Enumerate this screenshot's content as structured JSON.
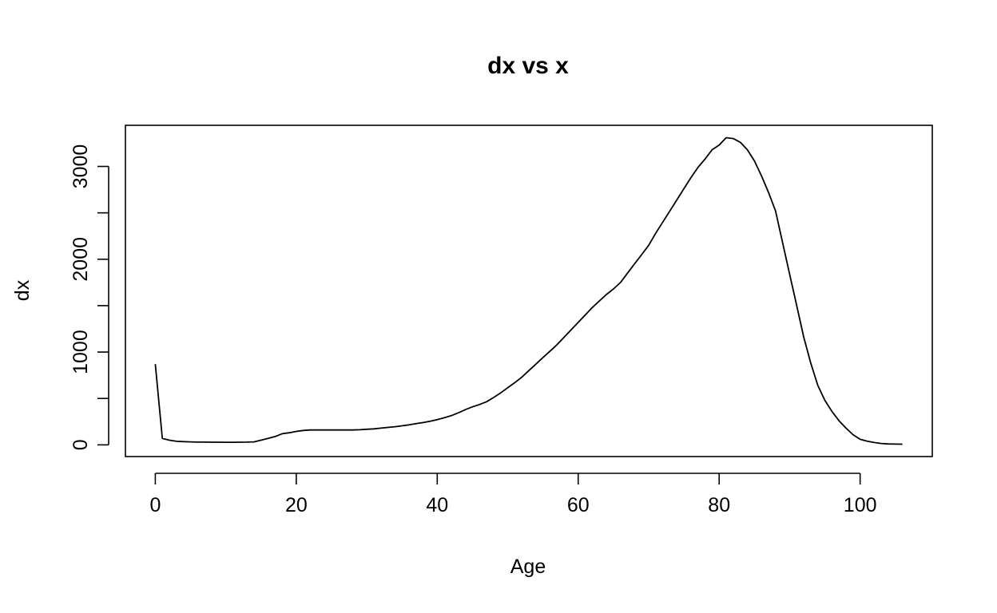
{
  "chart_data": {
    "type": "line",
    "title": "dx vs x",
    "xlabel": "Age",
    "ylabel": "dx",
    "xlim": [
      -4.24,
      110.24
    ],
    "ylim": [
      -126,
      3443
    ],
    "x_ticks": [
      0,
      20,
      40,
      60,
      80,
      100
    ],
    "y_ticks": [
      0,
      1000,
      2000,
      3000
    ],
    "y_minor_ticks": [
      500,
      1500,
      2500
    ],
    "grid": false,
    "legend": "none",
    "line_color": "#000000",
    "series": [
      {
        "x": [
          0,
          1,
          2,
          3,
          4,
          5,
          6,
          7,
          8,
          9,
          10,
          11,
          12,
          13,
          14,
          15,
          16,
          17,
          18,
          19,
          20,
          21,
          22,
          23,
          24,
          25,
          26,
          27,
          28,
          29,
          30,
          31,
          32,
          33,
          34,
          35,
          36,
          37,
          38,
          39,
          40,
          41,
          42,
          43,
          44,
          45,
          46,
          47,
          48,
          49,
          50,
          51,
          52,
          53,
          54,
          55,
          56,
          57,
          58,
          59,
          60,
          61,
          62,
          63,
          64,
          65,
          66,
          67,
          68,
          69,
          70,
          71,
          72,
          73,
          74,
          75,
          76,
          77,
          78,
          79,
          80,
          81,
          82,
          83,
          84,
          85,
          86,
          87,
          88,
          89,
          90,
          91,
          92,
          93,
          94,
          95,
          96,
          97,
          98,
          99,
          100,
          101,
          102,
          103,
          104,
          105,
          106
        ],
        "y": [
          870,
          70,
          50,
          38,
          35,
          32,
          30,
          30,
          29,
          29,
          28,
          28,
          29,
          30,
          32,
          50,
          70,
          90,
          120,
          130,
          145,
          155,
          160,
          160,
          160,
          160,
          160,
          160,
          160,
          163,
          168,
          172,
          180,
          188,
          196,
          205,
          215,
          228,
          240,
          255,
          272,
          292,
          315,
          345,
          380,
          410,
          435,
          465,
          510,
          560,
          615,
          670,
          730,
          800,
          870,
          940,
          1010,
          1080,
          1160,
          1240,
          1320,
          1400,
          1480,
          1550,
          1620,
          1680,
          1750,
          1850,
          1950,
          2050,
          2150,
          2280,
          2400,
          2520,
          2640,
          2760,
          2880,
          2990,
          3080,
          3180,
          3230,
          3310,
          3300,
          3260,
          3180,
          3060,
          2900,
          2720,
          2520,
          2180,
          1840,
          1500,
          1160,
          880,
          640,
          480,
          360,
          260,
          180,
          110,
          60,
          40,
          25,
          15,
          10,
          8,
          7
        ]
      }
    ]
  }
}
